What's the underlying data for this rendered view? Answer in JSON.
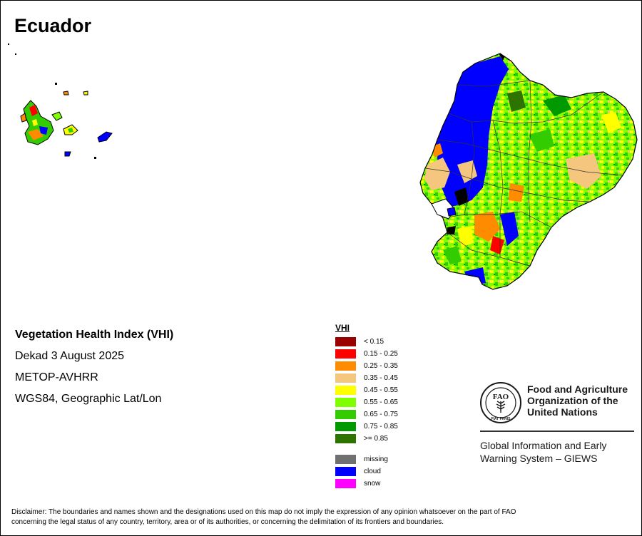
{
  "map": {
    "title": "Ecuador",
    "index_title": "Vegetation Health Index (VHI)",
    "period": "Dekad 3 August 2025",
    "sensor": "METOP-AVHRR",
    "projection": "WGS84, Geographic Lat/Lon"
  },
  "legend": {
    "title": "VHI",
    "classes": [
      {
        "label": "< 0.15",
        "color": "#990000"
      },
      {
        "label": "0.15 - 0.25",
        "color": "#ff0000"
      },
      {
        "label": "0.25 - 0.35",
        "color": "#ff8c00"
      },
      {
        "label": "0.35 - 0.45",
        "color": "#f5c77e"
      },
      {
        "label": "0.45 - 0.55",
        "color": "#ffff00"
      },
      {
        "label": "0.55 - 0.65",
        "color": "#7fff00"
      },
      {
        "label": "0.65 - 0.75",
        "color": "#33cc00"
      },
      {
        "label": "0.75 - 0.85",
        "color": "#009900"
      },
      {
        "label": ">= 0.85",
        "color": "#2e7300"
      }
    ],
    "special": [
      {
        "label": "missing",
        "color": "#707070"
      },
      {
        "label": "cloud",
        "color": "#0000ff"
      },
      {
        "label": "snow",
        "color": "#ff00ff"
      }
    ]
  },
  "org": {
    "name_line1": "Food and Agriculture",
    "name_line2": "Organization of the",
    "name_line3": "United Nations",
    "logo_letters": "FAO",
    "logo_motto": "FIAT PANIS",
    "program_line1": "Global Information and Early",
    "program_line2": "Warning System – GIEWS"
  },
  "disclaimer": {
    "line1": "Disclaimer: The boundaries and names shown and the designations used on this map do not imply the expression of any opinion whatsoever on the part of FAO",
    "line2": "concerning the legal status of any country, territory, area or of its authorities, or concerning the delimitation of its frontiers and boundaries."
  }
}
